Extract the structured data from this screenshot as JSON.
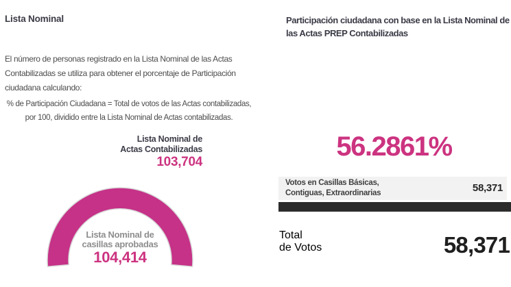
{
  "colors": {
    "pink": "#cc3380",
    "arc_pink": "#c53287",
    "heading": "#3b3b47",
    "body_text": "#4c4c4c",
    "gauge_label": "#8e8e8e",
    "row_bg": "#f2f2f2",
    "bar_dark": "#2c2c2c",
    "value_dark": "#1f1f1f",
    "arc_outline": "#d8d8d8"
  },
  "left": {
    "title": "Lista Nominal",
    "description_lines": [
      "El número de personas registrado en la Lista Nominal de las Actas",
      "Contabilizadas se utiliza para obtener el porcentaje de Participación",
      "ciudadana calculando:"
    ],
    "formula_lines": [
      "% de Participación Ciudadana = Total de votos de las Actas contabilizadas,",
      "por 100, dividido entre la Lista Nominal de Actas contabilizadas."
    ],
    "actas": {
      "label_lines": [
        "Lista Nominal de",
        "Actas Contabilizadas"
      ],
      "value": "103,704"
    },
    "gauge": {
      "label_lines": [
        "Lista Nominal de",
        "casillas aprobadas"
      ],
      "value": "104,414"
    }
  },
  "right": {
    "title_lines": [
      "Participación ciudadana con base en la Lista Nominal de",
      "las Actas PREP Contabilizadas"
    ],
    "percentage": "56.2861%",
    "votes_row": {
      "label_lines": [
        "Votos en Casillas Básicas,",
        "Contiguas, Extraordinarias"
      ],
      "value": "58,371"
    },
    "total": {
      "label_lines": [
        "Total",
        "de Votos"
      ],
      "value": "58,371"
    }
  },
  "chart_data": [
    {
      "type": "gauge",
      "title": "Lista Nominal de casillas aprobadas",
      "value": 104414,
      "color": "#c53287"
    },
    {
      "type": "bar",
      "categories": [
        "Votos en Casillas Básicas, Contiguas, Extraordinarias"
      ],
      "values": [
        58371
      ],
      "title": "Total de Votos",
      "total": 58371
    }
  ]
}
